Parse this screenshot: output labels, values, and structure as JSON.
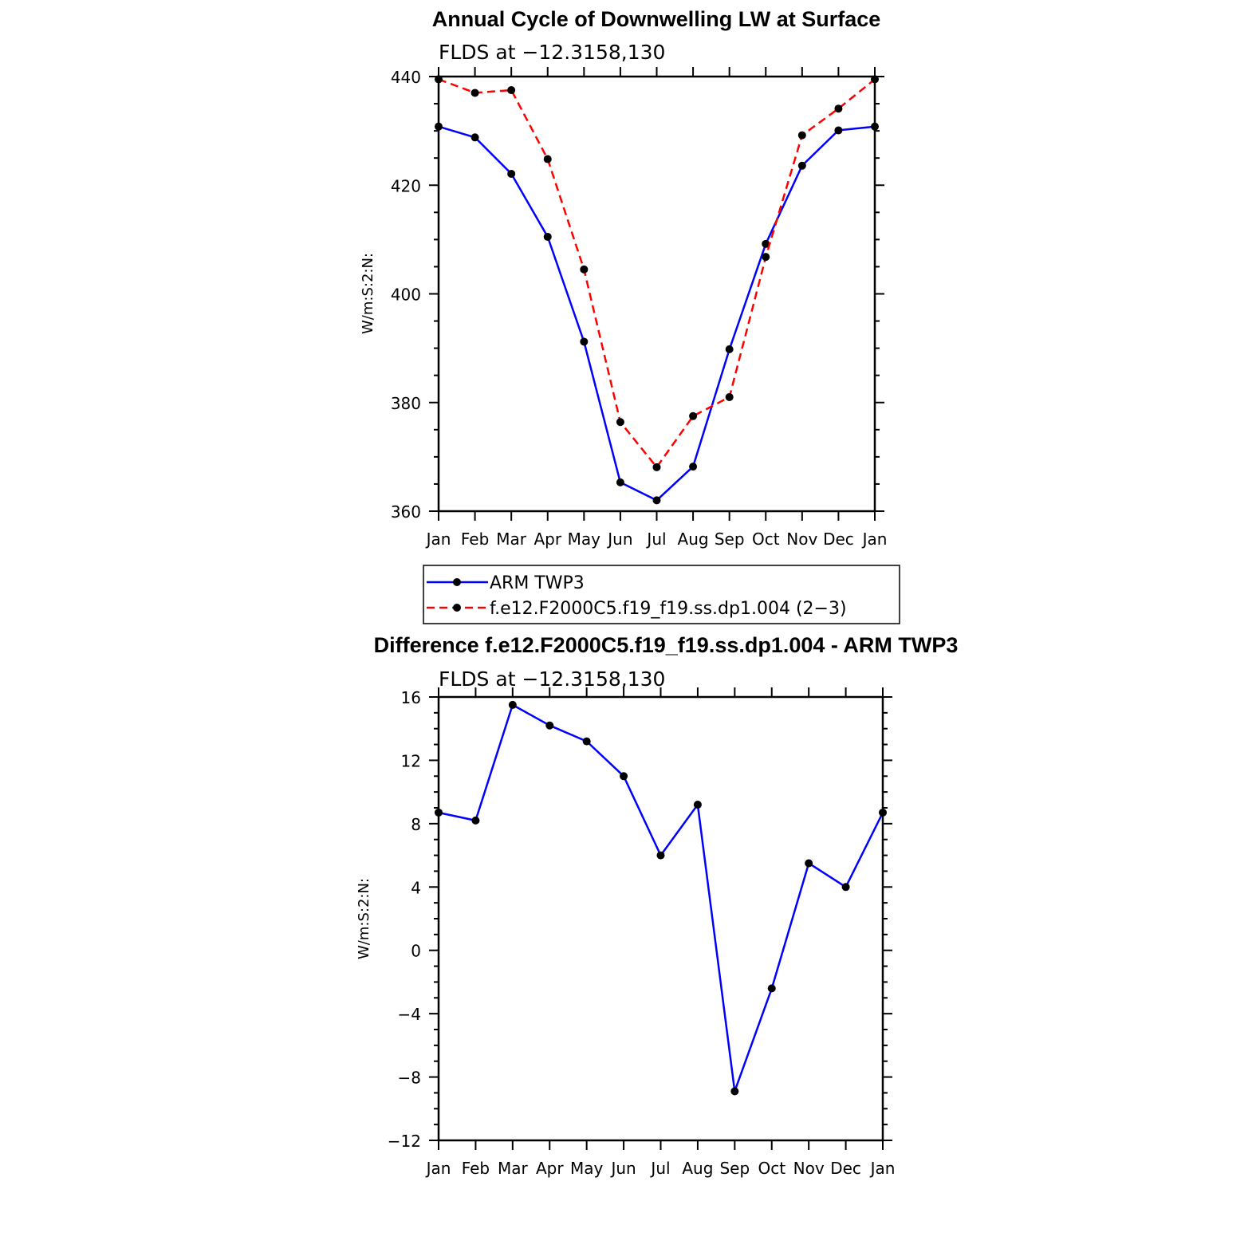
{
  "chart_data": [
    {
      "type": "line",
      "title": "Annual Cycle of Downwelling LW at Surface",
      "subtitle": "FLDS at −12.3158,130",
      "ylabel": "W/m:S:2:N:",
      "xlabel": "",
      "categories": [
        "Jan",
        "Feb",
        "Mar",
        "Apr",
        "May",
        "Jun",
        "Jul",
        "Aug",
        "Sep",
        "Oct",
        "Nov",
        "Dec",
        "Jan"
      ],
      "ylim": [
        360,
        440
      ],
      "yticks": [
        "360",
        "380",
        "400",
        "420",
        "440"
      ],
      "series": [
        {
          "name": "ARM TWP3",
          "color": "#0000ff",
          "dashed": false,
          "values": [
            430.8,
            428.8,
            422.1,
            410.5,
            391.2,
            365.3,
            362.0,
            368.2,
            389.8,
            409.2,
            423.6,
            430.1,
            430.8
          ]
        },
        {
          "name": "f.e12.F2000C5.f19_f19.ss.dp1.004 (2−3)",
          "color": "#ff0000",
          "dashed": true,
          "values": [
            439.5,
            437.0,
            437.5,
            424.8,
            404.5,
            376.4,
            368.1,
            377.5,
            381.0,
            406.8,
            429.2,
            434.1,
            439.5
          ]
        }
      ],
      "legend": "bottom"
    },
    {
      "type": "line",
      "title": "Difference f.e12.F2000C5.f19_f19.ss.dp1.004 - ARM TWP3",
      "subtitle": "FLDS at −12.3158,130",
      "ylabel": "W/m:S:2:N:",
      "xlabel": "",
      "categories": [
        "Jan",
        "Feb",
        "Mar",
        "Apr",
        "May",
        "Jun",
        "Jul",
        "Aug",
        "Sep",
        "Oct",
        "Nov",
        "Dec",
        "Jan"
      ],
      "ylim": [
        -12,
        16
      ],
      "yticks": [
        "−12",
        "−8",
        "−4",
        "0",
        "4",
        "8",
        "12",
        "16"
      ],
      "series": [
        {
          "name": "Difference",
          "color": "#0000ff",
          "dashed": false,
          "values": [
            8.7,
            8.2,
            15.5,
            14.2,
            13.2,
            11.0,
            6.0,
            9.2,
            -8.9,
            -2.4,
            5.5,
            4.0,
            8.7
          ]
        }
      ]
    }
  ]
}
